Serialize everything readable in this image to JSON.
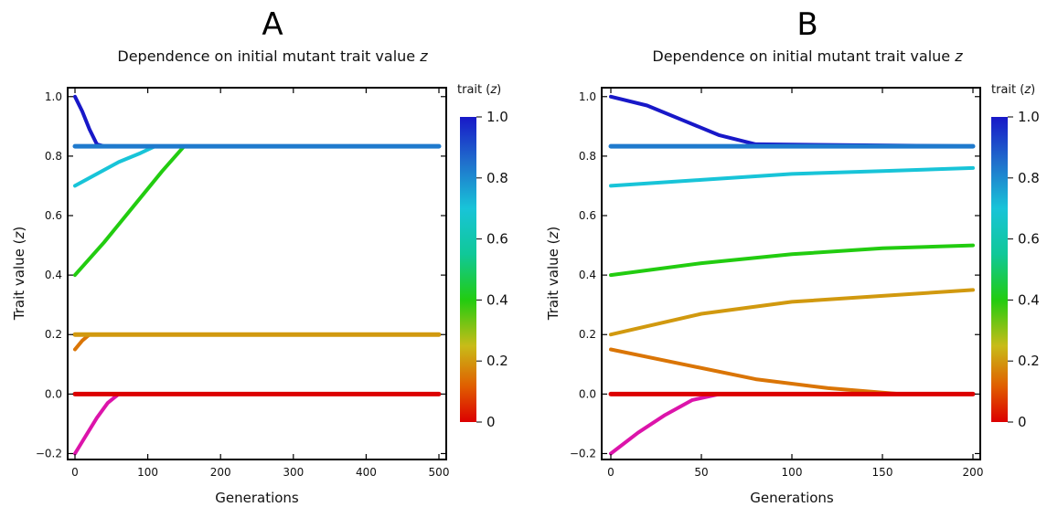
{
  "chart_data": [
    {
      "type": "scatter",
      "panel_letter": "A",
      "title": "Dependence on initial mutant trait value",
      "title_var": "z",
      "xlabel": "Generations",
      "ylabel_main": "Trait value (",
      "ylabel_var": "z",
      "ylabel_end": ")",
      "xlim": [
        0,
        500
      ],
      "ylim": [
        -0.22,
        1.03
      ],
      "x_ticks": [
        0,
        100,
        200,
        300,
        400,
        500
      ],
      "x_tick_labels": [
        "0",
        "100",
        "200",
        "300",
        "400",
        "500"
      ],
      "y_ticks": [
        -0.2,
        0.0,
        0.2,
        0.4,
        0.6,
        0.8,
        1.0
      ],
      "y_tick_labels": [
        "−0.2",
        "0.0",
        "0.2",
        "0.4",
        "0.6",
        "0.8",
        "1.0"
      ],
      "equilibria": [
        0.833,
        0.2,
        0.0
      ],
      "series": [
        {
          "initial_trait": 1.0,
          "x": [
            0,
            10,
            20,
            30,
            40,
            500
          ],
          "y": [
            1.0,
            0.95,
            0.89,
            0.84,
            0.833,
            0.833
          ]
        },
        {
          "initial_trait": 0.7,
          "x": [
            0,
            30,
            60,
            90,
            110,
            500
          ],
          "y": [
            0.7,
            0.74,
            0.78,
            0.81,
            0.833,
            0.833
          ]
        },
        {
          "initial_trait": 0.4,
          "x": [
            0,
            40,
            80,
            120,
            150,
            500
          ],
          "y": [
            0.4,
            0.51,
            0.63,
            0.75,
            0.833,
            0.833
          ]
        },
        {
          "initial_trait": 0.15,
          "x": [
            0,
            10,
            20,
            500
          ],
          "y": [
            0.15,
            0.18,
            0.2,
            0.2
          ]
        },
        {
          "initial_trait": -0.2,
          "x": [
            0,
            15,
            30,
            45,
            60,
            500
          ],
          "y": [
            -0.2,
            -0.14,
            -0.08,
            -0.03,
            0.0,
            0.0
          ]
        }
      ],
      "colorbar": {
        "title_main": "trait (",
        "title_var": "z",
        "title_end": ")",
        "min": 0,
        "max": 1,
        "tick_values": [
          0,
          0.2,
          0.4,
          0.6,
          0.8,
          1.0
        ],
        "tick_labels": [
          "0",
          "0.2",
          "0.4",
          "0.6",
          "0.8",
          "1.0"
        ]
      }
    },
    {
      "type": "scatter",
      "panel_letter": "B",
      "title": "Dependence on initial mutant trait value",
      "title_var": "z",
      "xlabel": "Generations",
      "ylabel_main": "Trait value (",
      "ylabel_var": "z",
      "ylabel_end": ")",
      "xlim": [
        0,
        200
      ],
      "ylim": [
        -0.22,
        1.03
      ],
      "x_ticks": [
        0,
        50,
        100,
        150,
        200
      ],
      "x_tick_labels": [
        "0",
        "50",
        "100",
        "150",
        "200"
      ],
      "y_ticks": [
        -0.2,
        0.0,
        0.2,
        0.4,
        0.6,
        0.8,
        1.0
      ],
      "y_tick_labels": [
        "−0.2",
        "0.0",
        "0.2",
        "0.4",
        "0.6",
        "0.8",
        "1.0"
      ],
      "equilibria": [
        0.833,
        0.0
      ],
      "series": [
        {
          "initial_trait": 1.0,
          "x": [
            0,
            20,
            40,
            60,
            80,
            200
          ],
          "y": [
            1.0,
            0.97,
            0.92,
            0.87,
            0.84,
            0.833
          ]
        },
        {
          "initial_trait": 0.7,
          "x": [
            0,
            50,
            100,
            150,
            200
          ],
          "y": [
            0.7,
            0.72,
            0.74,
            0.75,
            0.76
          ]
        },
        {
          "initial_trait": 0.4,
          "x": [
            0,
            50,
            100,
            150,
            200
          ],
          "y": [
            0.4,
            0.44,
            0.47,
            0.49,
            0.5
          ]
        },
        {
          "initial_trait": 0.2,
          "x": [
            0,
            50,
            100,
            150,
            200
          ],
          "y": [
            0.2,
            0.27,
            0.31,
            0.33,
            0.35
          ]
        },
        {
          "initial_trait": 0.15,
          "x": [
            0,
            40,
            80,
            120,
            160,
            200
          ],
          "y": [
            0.15,
            0.1,
            0.05,
            0.02,
            0.0,
            0.0
          ]
        },
        {
          "initial_trait": -0.2,
          "x": [
            0,
            15,
            30,
            45,
            60,
            200
          ],
          "y": [
            -0.2,
            -0.13,
            -0.07,
            -0.02,
            0.0,
            0.0
          ]
        }
      ],
      "colorbar": {
        "title_main": "trait (",
        "title_var": "z",
        "title_end": ")",
        "min": 0,
        "max": 1,
        "tick_values": [
          0,
          0.2,
          0.4,
          0.6,
          0.8,
          1.0
        ],
        "tick_labels": [
          "0",
          "0.2",
          "0.4",
          "0.6",
          "0.8",
          "1.0"
        ]
      }
    }
  ]
}
